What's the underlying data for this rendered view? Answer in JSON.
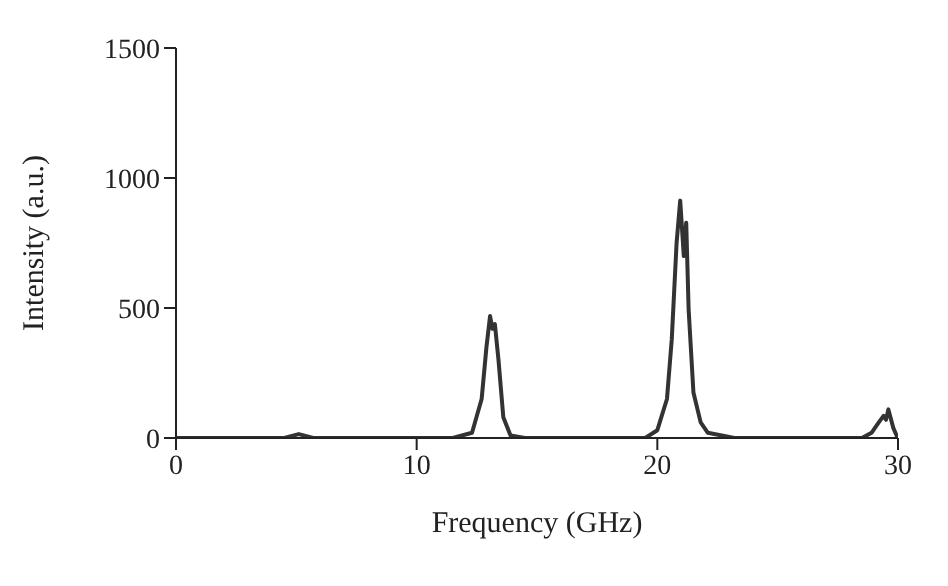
{
  "chart_data": {
    "type": "line",
    "xlabel": "Frequency (GHz)",
    "ylabel": "Intensity (a.u.)",
    "xlim": [
      0,
      30
    ],
    "xticks": [
      0,
      10,
      20,
      30
    ],
    "ylim": [
      0,
      1500
    ],
    "yticks": [
      0,
      500,
      1000,
      1500
    ],
    "grid": false,
    "legend": false,
    "marker": "none",
    "line_style": "solid",
    "series": [
      {
        "color": "#333333",
        "x": [
          0,
          4.5,
          5.1,
          5.7,
          11.5,
          12.3,
          12.7,
          12.9,
          13.05,
          13.15,
          13.25,
          13.4,
          13.6,
          13.9,
          14.5,
          19.5,
          20.0,
          20.4,
          20.6,
          20.8,
          20.95,
          21.1,
          21.2,
          21.3,
          21.5,
          21.8,
          22.1,
          23.2,
          28.5,
          28.9,
          29.2,
          29.4,
          29.5,
          29.6,
          29.8,
          29.95,
          30
        ],
        "values": [
          0,
          0,
          15,
          0,
          0,
          20,
          150,
          350,
          469,
          420,
          438,
          300,
          80,
          10,
          0,
          0,
          30,
          150,
          380,
          750,
          913,
          700,
          828,
          495,
          175,
          60,
          20,
          0,
          0,
          20,
          60,
          85,
          70,
          110,
          40,
          8,
          0
        ]
      }
    ]
  }
}
